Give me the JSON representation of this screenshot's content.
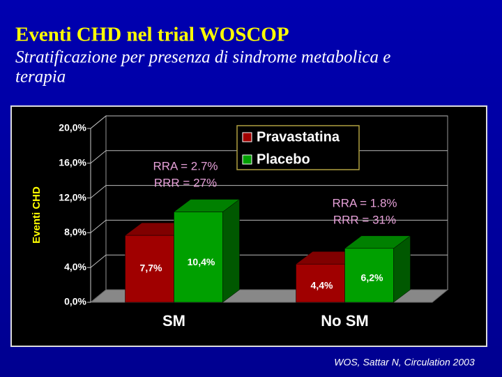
{
  "header": {
    "title": "Eventi CHD nel trial WOSCOP",
    "subtitle_lines": [
      "Stratificazione per presenza di sindrome metabolica e",
      "terapia"
    ]
  },
  "chart_data": {
    "type": "bar3d",
    "categories": [
      "SM",
      "No SM"
    ],
    "series": [
      {
        "name": "Pravastatina",
        "color": "#a00000",
        "values": [
          7.7,
          4.4
        ],
        "value_labels": [
          "7,7%",
          "4,4%"
        ]
      },
      {
        "name": "Placebo",
        "color": "#00a000",
        "values": [
          10.4,
          6.2
        ],
        "value_labels": [
          "10,4%",
          "6,2%"
        ]
      }
    ],
    "ylabel": "Eventi CHD",
    "ylim": [
      0,
      20
    ],
    "yticks": [
      {
        "value": 0,
        "label": "0,0%"
      },
      {
        "value": 4,
        "label": "4,0%"
      },
      {
        "value": 8,
        "label": "8,0%"
      },
      {
        "value": 12,
        "label": "12,0%"
      },
      {
        "value": 16,
        "label": "16,0%"
      },
      {
        "value": 20,
        "label": "20,0%"
      }
    ],
    "grid": true,
    "legend": "top-right",
    "annotations": [
      [
        "RRA = 2.7%",
        "RRR = 27%"
      ],
      [
        "RRA = 1.8%",
        "RRR = 31%"
      ]
    ]
  },
  "source": "WOS, Sattar N, Circulation  2003"
}
